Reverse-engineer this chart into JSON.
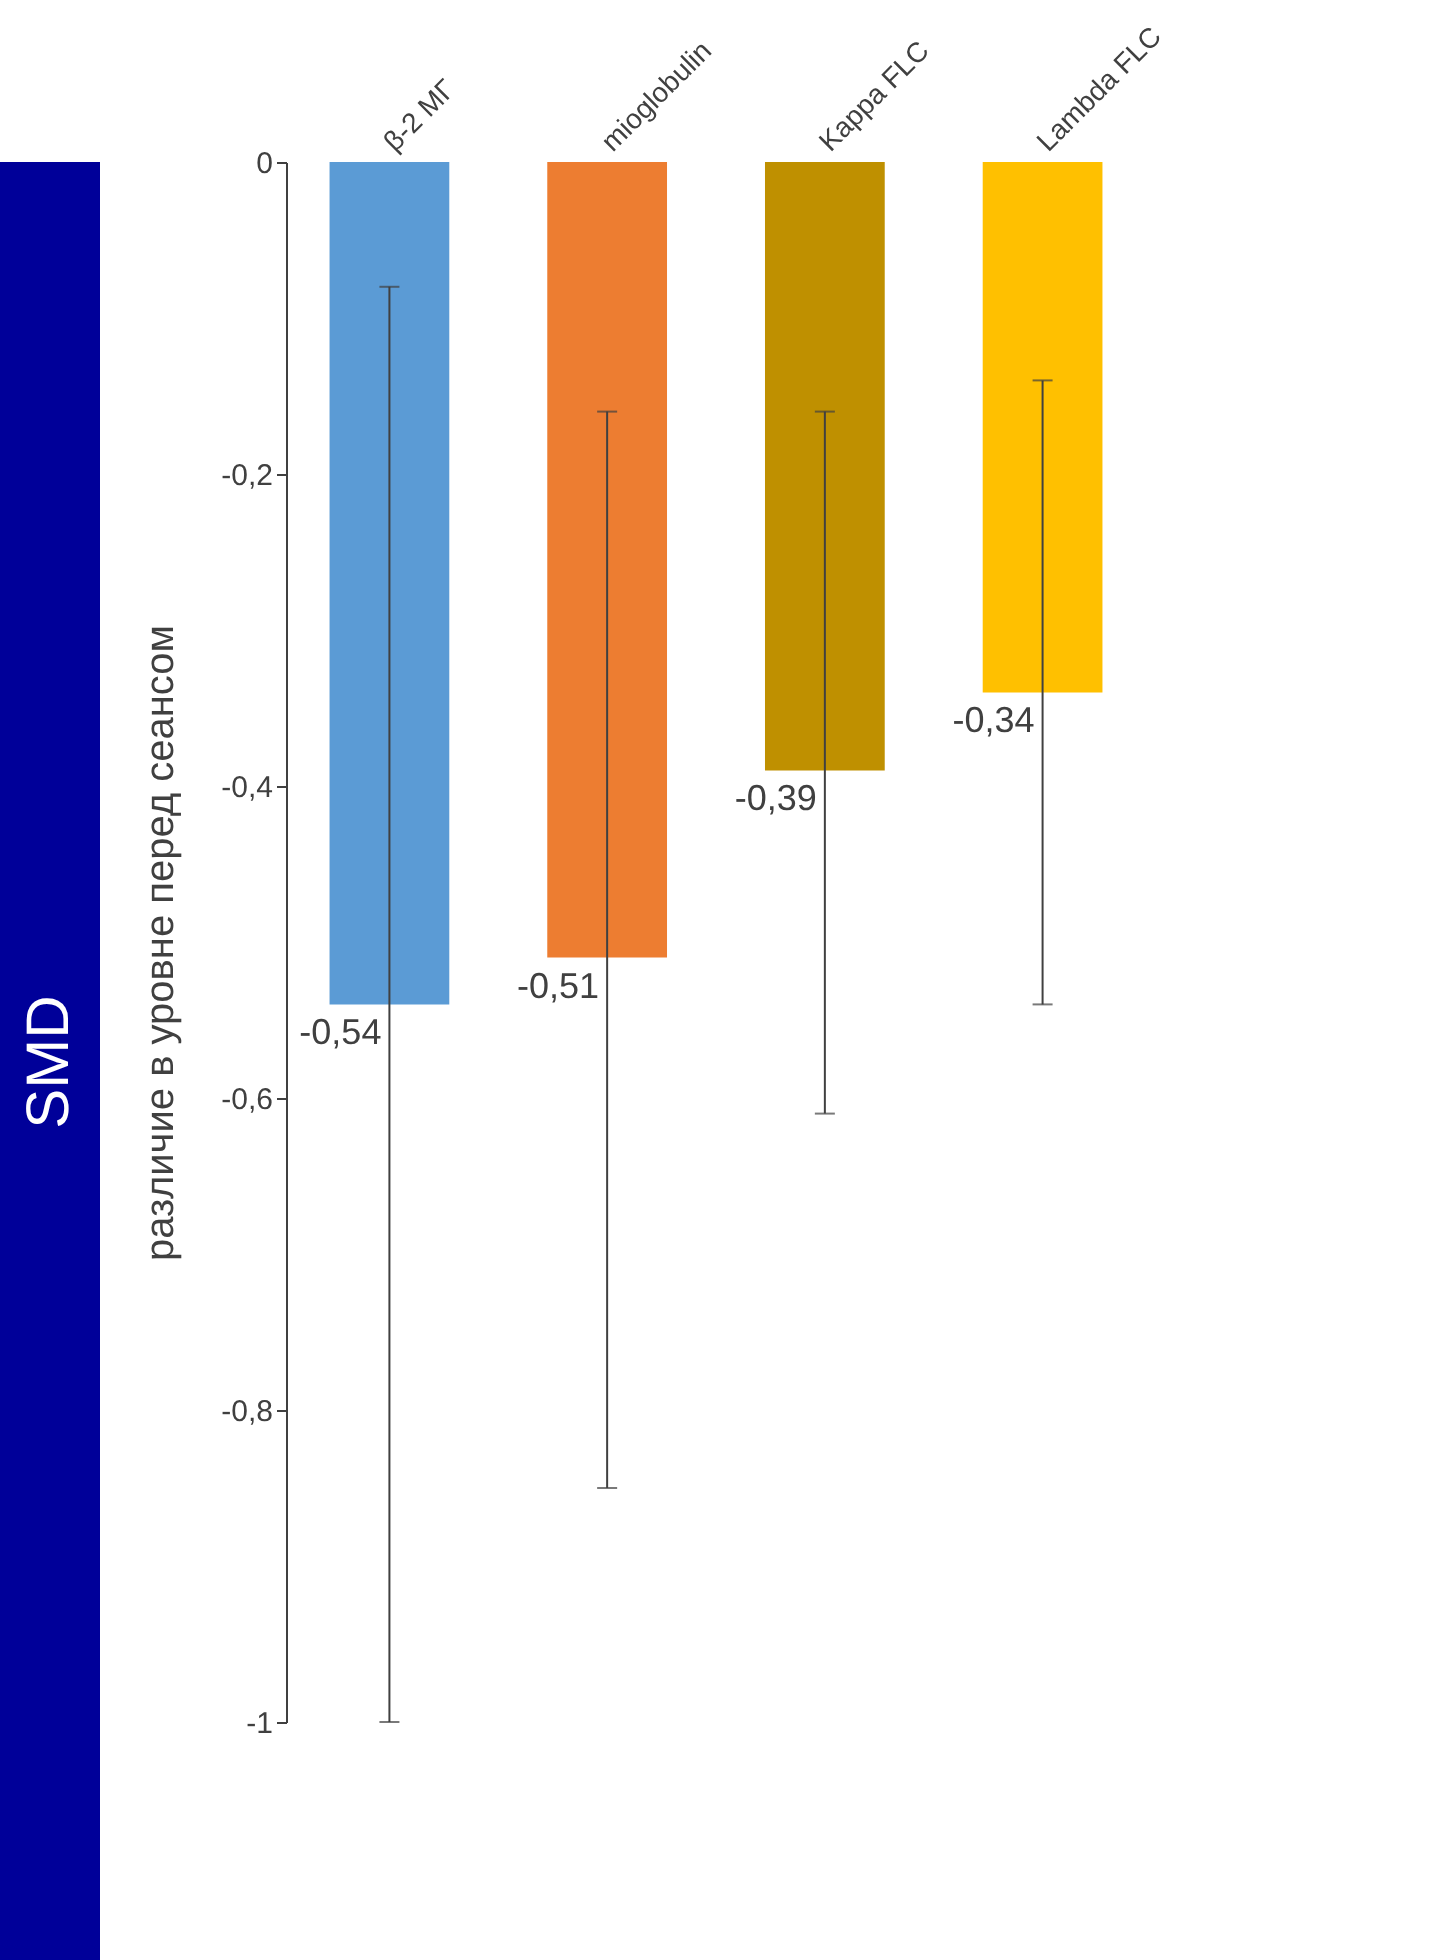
{
  "chart_data": {
    "type": "bar",
    "categories": [
      "β-2 МГ",
      "mioglobulin",
      "Kappa FLC",
      "Lambda FLC"
    ],
    "values": [
      -0.54,
      -0.51,
      -0.39,
      -0.34
    ],
    "colors": [
      "#5b9bd5",
      "#ed7d31",
      "#bf9000",
      "#ffc000"
    ],
    "value_labels": [
      "-0,54",
      "-0,51",
      "-0,39",
      "-0,34"
    ],
    "errors": [
      [
        -1.0,
        -0.08
      ],
      [
        -0.85,
        -0.16
      ],
      [
        -0.61,
        -0.16
      ],
      [
        -0.54,
        -0.14
      ]
    ],
    "ylabel": "различие в уровне перед сеансом",
    "annotations": [
      "SMD"
    ],
    "ylim": [
      -1,
      0
    ],
    "yticks": [
      0,
      {
        "value": -0.2,
        "label": "-0,2"
      },
      {
        "value": -0.4,
        "label": "-0,4"
      },
      {
        "value": -0.6,
        "label": "-0,6"
      },
      {
        "value": -0.8,
        "label": "-0,8"
      },
      -1
    ],
    "grid": false
  }
}
